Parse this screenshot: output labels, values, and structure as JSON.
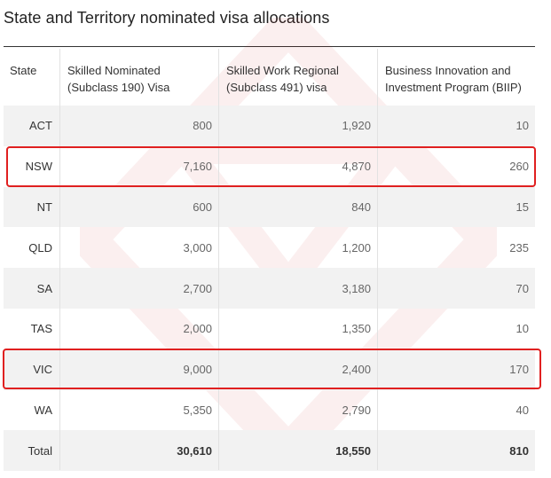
{
  "title": "State and Territory nominated visa allocations",
  "table": {
    "headers": [
      "State",
      "Skilled Nominated (Subclass 190) Visa",
      "Skilled Work Regional (Subclass 491) visa",
      "Business Innovation and Investment Program (BIIP)"
    ],
    "rows": [
      {
        "state": "ACT",
        "v190": "800",
        "v491": "1,920",
        "biip": "10"
      },
      {
        "state": "NSW",
        "v190": "7,160",
        "v491": "4,870",
        "biip": "260"
      },
      {
        "state": "NT",
        "v190": "600",
        "v491": "840",
        "biip": "15"
      },
      {
        "state": "QLD",
        "v190": "3,000",
        "v491": "1,200",
        "biip": "235"
      },
      {
        "state": "SA",
        "v190": "2,700",
        "v491": "3,180",
        "biip": "70"
      },
      {
        "state": "TAS",
        "v190": "2,000",
        "v491": "1,350",
        "biip": "10"
      },
      {
        "state": "VIC",
        "v190": "9,000",
        "v491": "2,400",
        "biip": "170"
      },
      {
        "state": "WA",
        "v190": "5,350",
        "v491": "2,790",
        "biip": "40"
      },
      {
        "state": "Total",
        "v190": "30,610",
        "v491": "18,550",
        "biip": "810"
      }
    ]
  },
  "highlighted_rows": [
    "NSW",
    "VIC"
  ],
  "colors": {
    "highlight": "#e02020",
    "row_shade": "#f2f2f2",
    "text": "#333333"
  }
}
